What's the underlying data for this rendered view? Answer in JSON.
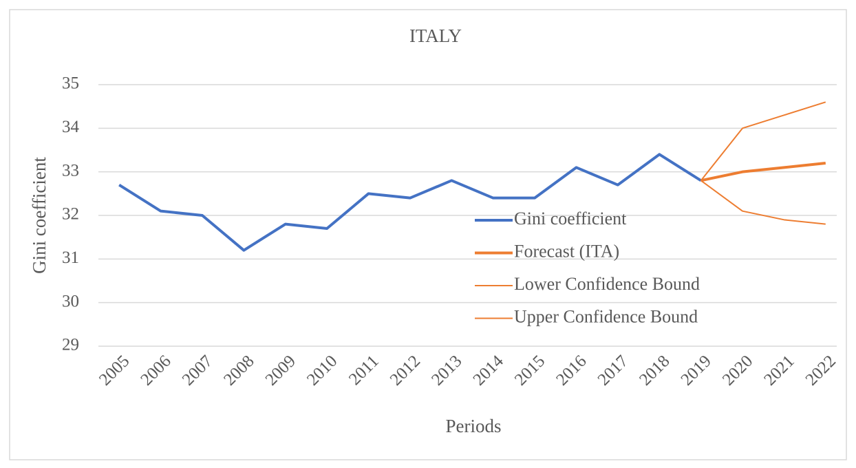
{
  "chart_data": {
    "type": "line",
    "title": "ITALY",
    "x_label": "Periods",
    "y_label": "Gini coefficient",
    "categories": [
      "2005",
      "2006",
      "2007",
      "2008",
      "2009",
      "2010",
      "2011",
      "2012",
      "2013",
      "2014",
      "2015",
      "2016",
      "2017",
      "2018",
      "2019",
      "2020",
      "2021",
      "2022"
    ],
    "series": [
      {
        "name": "Gini coefficient",
        "color": "#4472c4",
        "line_width": 4,
        "values": [
          32.7,
          32.1,
          32.0,
          31.2,
          31.8,
          31.7,
          32.5,
          32.4,
          32.8,
          32.4,
          32.4,
          33.1,
          32.7,
          33.4,
          32.8,
          null,
          null,
          null
        ]
      },
      {
        "name": "Forecast (ITA)",
        "color": "#ed7d31",
        "line_width": 4,
        "values": [
          null,
          null,
          null,
          null,
          null,
          null,
          null,
          null,
          null,
          null,
          null,
          null,
          null,
          null,
          32.8,
          33.0,
          33.1,
          33.2
        ]
      },
      {
        "name": "Lower Confidence Bound",
        "color": "#ed7d31",
        "line_width": 2,
        "values": [
          null,
          null,
          null,
          null,
          null,
          null,
          null,
          null,
          null,
          null,
          null,
          null,
          null,
          null,
          32.8,
          32.1,
          31.9,
          31.8
        ]
      },
      {
        "name": "Upper Confidence Bound",
        "color": "#ed7d31",
        "line_width": 2,
        "values": [
          null,
          null,
          null,
          null,
          null,
          null,
          null,
          null,
          null,
          null,
          null,
          null,
          null,
          null,
          32.8,
          34.0,
          34.3,
          34.6
        ]
      }
    ],
    "ylim": [
      29,
      35
    ],
    "yticks": [
      29,
      30,
      31,
      32,
      33,
      34,
      35
    ],
    "grid": true
  }
}
